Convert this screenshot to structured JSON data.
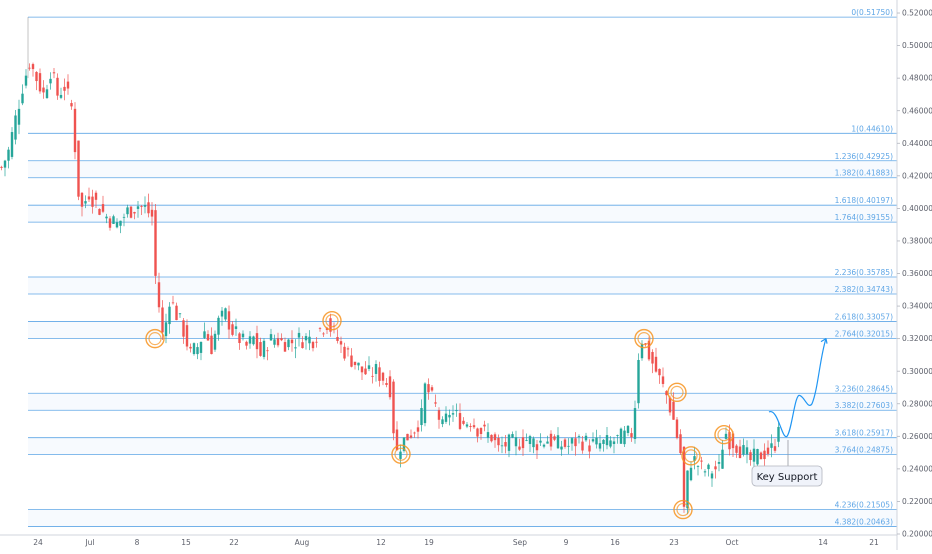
{
  "chart_data": {
    "type": "candlestick",
    "x_ticks": [
      "24",
      "Jul",
      "8",
      "15",
      "22",
      "Aug",
      "12",
      "19",
      "Sep",
      "9",
      "16",
      "23",
      "Oct",
      "14",
      "21"
    ],
    "y_ticks": [
      "0.52000",
      "0.50000",
      "0.48000",
      "0.46000",
      "0.44000",
      "0.42000",
      "0.40000",
      "0.38000",
      "0.36000",
      "0.34000",
      "0.32000",
      "0.30000",
      "0.28000",
      "0.26000",
      "0.24000",
      "0.22000",
      "0.20000"
    ],
    "ylim": [
      0.2,
      0.528
    ],
    "fib_levels": [
      {
        "label": "0(0.51750)",
        "value": 0.5175
      },
      {
        "label": "1(0.44610)",
        "value": 0.4461
      },
      {
        "label": "1.236(0.42925)",
        "value": 0.42925
      },
      {
        "label": "1.382(0.41883)",
        "value": 0.41883
      },
      {
        "label": "1.618(0.40197)",
        "value": 0.40197
      },
      {
        "label": "1.764(0.39155)",
        "value": 0.39155
      },
      {
        "label": "2.236(0.35785)",
        "value": 0.35785
      },
      {
        "label": "2.382(0.34743)",
        "value": 0.34743
      },
      {
        "label": "2.618(0.33057)",
        "value": 0.33057
      },
      {
        "label": "2.764(0.32015)",
        "value": 0.32015
      },
      {
        "label": "3.236(0.28645)",
        "value": 0.28645
      },
      {
        "label": "3.382(0.27603)",
        "value": 0.27603
      },
      {
        "label": "3.618(0.25917)",
        "value": 0.25917
      },
      {
        "label": "3.764(0.24875)",
        "value": 0.24875
      },
      {
        "label": "4.236(0.21505)",
        "value": 0.21505
      },
      {
        "label": "4.382(0.20463)",
        "value": 0.20463
      }
    ],
    "callout": "Key Support",
    "price_anchors": [
      [
        0,
        0.425
      ],
      [
        2,
        0.435
      ],
      [
        4,
        0.455
      ],
      [
        6,
        0.475
      ],
      [
        8,
        0.49
      ],
      [
        10,
        0.48
      ],
      [
        12,
        0.47
      ],
      [
        14,
        0.485
      ],
      [
        16,
        0.47
      ],
      [
        18,
        0.475
      ],
      [
        20,
        0.462
      ],
      [
        21,
        0.438
      ],
      [
        22,
        0.41
      ],
      [
        23,
        0.4
      ],
      [
        25,
        0.41
      ],
      [
        28,
        0.4
      ],
      [
        30,
        0.395
      ],
      [
        33,
        0.39
      ],
      [
        36,
        0.398
      ],
      [
        39,
        0.402
      ],
      [
        41,
        0.4
      ],
      [
        43,
        0.395
      ],
      [
        44,
        0.358
      ],
      [
        45,
        0.34
      ],
      [
        46,
        0.322
      ],
      [
        47,
        0.33
      ],
      [
        48,
        0.345
      ],
      [
        50,
        0.335
      ],
      [
        52,
        0.325
      ],
      [
        54,
        0.31
      ],
      [
        56,
        0.315
      ],
      [
        58,
        0.325
      ],
      [
        60,
        0.315
      ],
      [
        62,
        0.33
      ],
      [
        64,
        0.335
      ],
      [
        66,
        0.325
      ],
      [
        68,
        0.32
      ],
      [
        70,
        0.315
      ],
      [
        72,
        0.32
      ],
      [
        74,
        0.31
      ],
      [
        76,
        0.318
      ],
      [
        78,
        0.32
      ],
      [
        80,
        0.318
      ],
      [
        83,
        0.318
      ],
      [
        86,
        0.32
      ],
      [
        89,
        0.32
      ],
      [
        91,
        0.326
      ],
      [
        93,
        0.33
      ],
      [
        95,
        0.323
      ],
      [
        97,
        0.315
      ],
      [
        99,
        0.31
      ],
      [
        101,
        0.305
      ],
      [
        103,
        0.3
      ],
      [
        105,
        0.298
      ],
      [
        107,
        0.3
      ],
      [
        109,
        0.296
      ],
      [
        111,
        0.29
      ],
      [
        112,
        0.265
      ],
      [
        113,
        0.25
      ],
      [
        114,
        0.255
      ],
      [
        116,
        0.26
      ],
      [
        118,
        0.265
      ],
      [
        120,
        0.272
      ],
      [
        121,
        0.29
      ],
      [
        122,
        0.287
      ],
      [
        124,
        0.278
      ],
      [
        126,
        0.265
      ],
      [
        128,
        0.275
      ],
      [
        130,
        0.272
      ],
      [
        132,
        0.268
      ],
      [
        134,
        0.27
      ],
      [
        136,
        0.265
      ],
      [
        138,
        0.262
      ],
      [
        140,
        0.26
      ],
      [
        142,
        0.252
      ],
      [
        144,
        0.255
      ],
      [
        147,
        0.256
      ],
      [
        150,
        0.258
      ],
      [
        153,
        0.256
      ],
      [
        156,
        0.258
      ],
      [
        159,
        0.255
      ],
      [
        162,
        0.254
      ],
      [
        165,
        0.258
      ],
      [
        168,
        0.255
      ],
      [
        171,
        0.255
      ],
      [
        174,
        0.256
      ],
      [
        176,
        0.258
      ],
      [
        178,
        0.26
      ],
      [
        180,
        0.262
      ],
      [
        181,
        0.28
      ],
      [
        182,
        0.31
      ],
      [
        183,
        0.32
      ],
      [
        184,
        0.315
      ],
      [
        186,
        0.305
      ],
      [
        188,
        0.295
      ],
      [
        189,
        0.29
      ],
      [
        190,
        0.285
      ],
      [
        191,
        0.278
      ],
      [
        192,
        0.27
      ],
      [
        193,
        0.26
      ],
      [
        194,
        0.25
      ],
      [
        195,
        0.215
      ],
      [
        196,
        0.235
      ],
      [
        197,
        0.245
      ],
      [
        198,
        0.245
      ],
      [
        200,
        0.24
      ],
      [
        202,
        0.238
      ],
      [
        204,
        0.24
      ],
      [
        205,
        0.24
      ],
      [
        206,
        0.255
      ],
      [
        207,
        0.262
      ],
      [
        208,
        0.258
      ],
      [
        210,
        0.255
      ],
      [
        212,
        0.25
      ],
      [
        214,
        0.245
      ],
      [
        216,
        0.248
      ],
      [
        218,
        0.25
      ],
      [
        220,
        0.252
      ],
      [
        221,
        0.256
      ],
      [
        222,
        0.27
      ]
    ],
    "projection": [
      [
        0.2705,
        0.275
      ],
      [
        0.2615,
        0.26
      ],
      [
        0.278,
        0.285
      ],
      [
        0.2795,
        0.28
      ],
      [
        0.3005,
        0.32
      ]
    ],
    "markers": [
      0.32,
      0.331,
      0.249,
      0.32,
      0.287,
      0.248,
      0.215,
      0.261
    ],
    "key_support_value": 0.257
  }
}
